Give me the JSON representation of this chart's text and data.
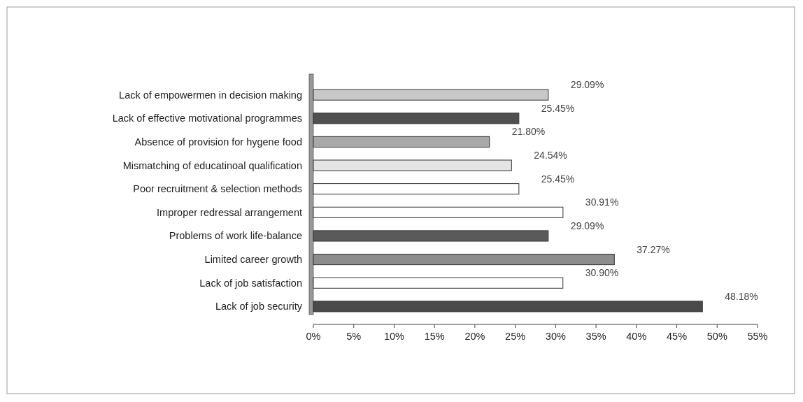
{
  "chart_data": {
    "type": "bar",
    "orientation": "horizontal",
    "categories": [
      "Lack of empowermen in decision making",
      "Lack of effective motivational programmes",
      "Absence of provision for hygene food",
      "Mismatching of educatinoal qualification",
      "Poor recruitment & selection methods",
      "Improper redressal arrangement",
      "Problems of work life-balance",
      "Limited career growth",
      "Lack of job satisfaction",
      "Lack of job security"
    ],
    "values": [
      29.09,
      25.45,
      21.8,
      24.54,
      25.45,
      30.91,
      29.09,
      37.27,
      30.9,
      48.18
    ],
    "value_labels": [
      "29.09%",
      "25.45%",
      "21.80%",
      "24.54%",
      "25.45%",
      "30.91%",
      "29.09%",
      "37.27%",
      "30.90%",
      "48.18%"
    ],
    "colors": [
      "#c8c8c8",
      "#505050",
      "#a8a8a8",
      "#e4e4e4",
      "#ffffff",
      "#ffffff",
      "#5a5a5a",
      "#8c8c8c",
      "#ffffff",
      "#4a4a4a"
    ],
    "xlim": [
      0,
      55
    ],
    "xticks": [
      {
        "value": 0,
        "label": "0%"
      },
      {
        "value": 5,
        "label": "5%"
      },
      {
        "value": 10,
        "label": "10%"
      },
      {
        "value": 15,
        "label": "15%"
      },
      {
        "value": 20,
        "label": "20%"
      },
      {
        "value": 25,
        "label": "25%"
      },
      {
        "value": 30,
        "label": "30%"
      },
      {
        "value": 35,
        "label": "35%"
      },
      {
        "value": 40,
        "label": "40%"
      },
      {
        "value": 45,
        "label": "45%"
      },
      {
        "value": 50,
        "label": "50%"
      },
      {
        "value": 55,
        "label": "55%"
      }
    ]
  }
}
